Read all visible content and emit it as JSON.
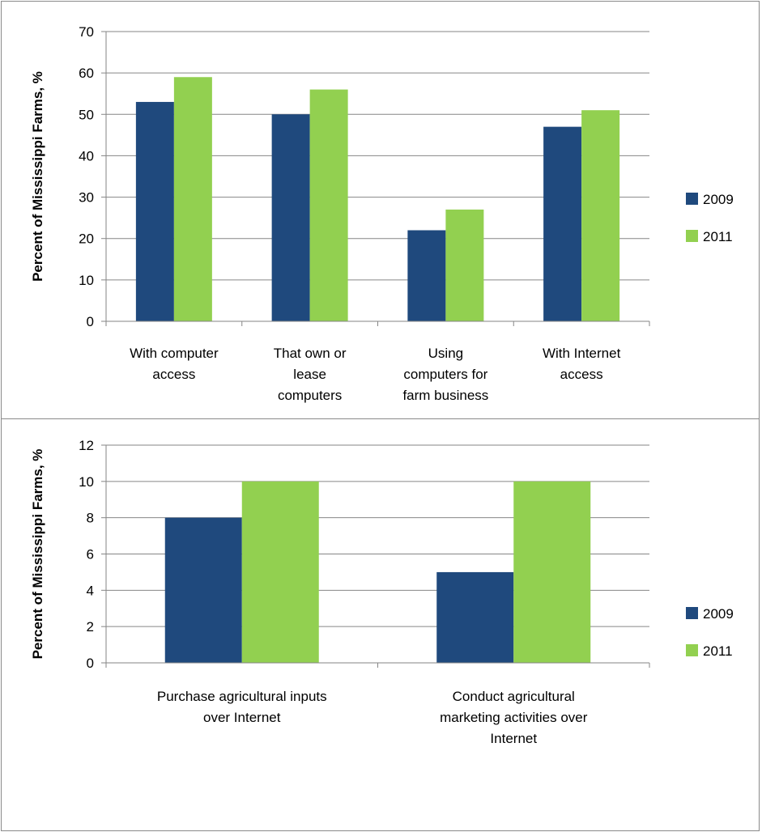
{
  "colors": {
    "s2009": "#1f497d",
    "s2011": "#92d050",
    "grid": "#868686"
  },
  "chart_data": [
    {
      "type": "bar",
      "categories": [
        [
          "With computer",
          "access"
        ],
        [
          "That own or",
          "lease",
          "computers"
        ],
        [
          "Using",
          "computers for",
          "farm business"
        ],
        [
          "With Internet",
          "access"
        ]
      ],
      "series": [
        {
          "name": "2009",
          "values": [
            53,
            50,
            22,
            47
          ]
        },
        {
          "name": "2011",
          "values": [
            59,
            56,
            27,
            51
          ]
        }
      ],
      "ylabel": "Percent of Mississippi  Farms, %",
      "ylim": [
        0,
        70
      ],
      "yticks": [
        0,
        10,
        20,
        30,
        40,
        50,
        60,
        70
      ],
      "grid": true,
      "legend": "right"
    },
    {
      "type": "bar",
      "categories": [
        [
          "Purchase agricultural inputs",
          "over Internet"
        ],
        [
          "Conduct agricultural",
          "marketing activities over",
          "Internet"
        ]
      ],
      "series": [
        {
          "name": "2009",
          "values": [
            8,
            5
          ]
        },
        {
          "name": "2011",
          "values": [
            10,
            10
          ]
        }
      ],
      "ylabel": "Percent of Mississippi  Farms, %",
      "ylim": [
        0,
        12
      ],
      "yticks": [
        0,
        2,
        4,
        6,
        8,
        10,
        12
      ],
      "grid": true,
      "legend": "right"
    }
  ]
}
